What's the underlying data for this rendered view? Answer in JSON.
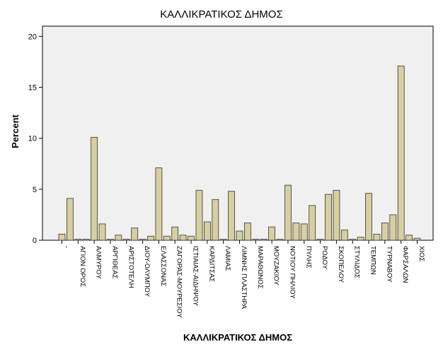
{
  "chart_data": {
    "type": "bar",
    "title": "ΚΑΛΛΙΚΡΑΤΙΚΟΣ ΔΗΜΟΣ",
    "xlabel": "ΚΑΛΛΙΚΡΑΤΙΚΟΣ ΔΗΜΟΣ",
    "ylabel": "Percent",
    "ylim": [
      0,
      21
    ],
    "yticks": [
      0,
      5,
      10,
      15,
      20
    ],
    "grid": false,
    "bar_color": "#d6cf9f",
    "plot_bg": "#f0f0f0",
    "bars": [
      {
        "value": 0.6,
        "label": "-"
      },
      {
        "value": 4.1,
        "label": ""
      },
      {
        "value": 0.1,
        "label": "ΑΓΙΟΝ ΟΡΟΣ"
      },
      {
        "value": 0.1,
        "label": ""
      },
      {
        "value": 10.1,
        "label": "ΑΛΜΥΡΟΥ"
      },
      {
        "value": 1.6,
        "label": ""
      },
      {
        "value": 0.1,
        "label": "ΑΡΓΙΘΕΑΣ"
      },
      {
        "value": 0.5,
        "label": ""
      },
      {
        "value": 0.1,
        "label": "ΑΡΙΣΤΟΤΕΛΗ"
      },
      {
        "value": 1.2,
        "label": ""
      },
      {
        "value": 0.1,
        "label": "ΔΙΟΥ-ΟΛΥΜΠΟΥ"
      },
      {
        "value": 0.4,
        "label": ""
      },
      {
        "value": 7.1,
        "label": "ΕΛΑΣΣΟΝΑΣ"
      },
      {
        "value": 0.4,
        "label": ""
      },
      {
        "value": 1.3,
        "label": "ΖΑΓΟΡΑΣ-ΜΟΥΡΕΣΙΟΥ"
      },
      {
        "value": 0.5,
        "label": ""
      },
      {
        "value": 0.4,
        "label": "ΙΣΤΙΑΙΑΣ-ΑΙΔΗΨΟΥ"
      },
      {
        "value": 4.9,
        "label": ""
      },
      {
        "value": 1.8,
        "label": "ΚΑΡΔΙΤΣΑΣ"
      },
      {
        "value": 4.0,
        "label": ""
      },
      {
        "value": 0.1,
        "label": "ΛΑΜΙΑΣ"
      },
      {
        "value": 4.8,
        "label": ""
      },
      {
        "value": 0.9,
        "label": "ΛΙΜΝΗΣ ΠΛΑΣΤΗΡΑ"
      },
      {
        "value": 1.7,
        "label": ""
      },
      {
        "value": 0.1,
        "label": "ΜΑΡΑΘΩΝΟΣ"
      },
      {
        "value": 0.1,
        "label": ""
      },
      {
        "value": 1.3,
        "label": "ΜΟΥΖΑΚΙΟΥ"
      },
      {
        "value": 0.1,
        "label": ""
      },
      {
        "value": 5.4,
        "label": "ΝΟΤΙΟΥ ΠΗΛΙΟΥ"
      },
      {
        "value": 1.7,
        "label": ""
      },
      {
        "value": 1.6,
        "label": "ΠΥΛΗΣ"
      },
      {
        "value": 3.4,
        "label": ""
      },
      {
        "value": 0.1,
        "label": "ΡΟΔΟΥ"
      },
      {
        "value": 4.5,
        "label": ""
      },
      {
        "value": 4.9,
        "label": "ΣΚΟΠΕΛΟΥ"
      },
      {
        "value": 1.0,
        "label": ""
      },
      {
        "value": 0.1,
        "label": "ΣΤΥΛΙΔΟΣ"
      },
      {
        "value": 0.3,
        "label": ""
      },
      {
        "value": 4.6,
        "label": "ΤΕΜΠΩΝ"
      },
      {
        "value": 0.6,
        "label": ""
      },
      {
        "value": 1.7,
        "label": "ΤΥΡΝΑΒΟΥ"
      },
      {
        "value": 2.5,
        "label": ""
      },
      {
        "value": 17.1,
        "label": "ΦΑΡΣΑΛΩΝ"
      },
      {
        "value": 0.5,
        "label": ""
      },
      {
        "value": 0.2,
        "label": "ΧΙΟΣ"
      }
    ]
  }
}
